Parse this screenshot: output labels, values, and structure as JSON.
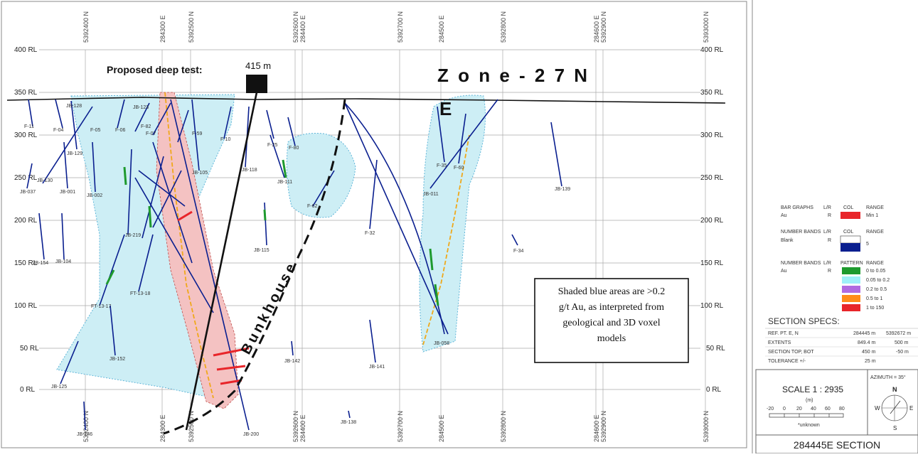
{
  "section": {
    "title": "284445E  SECTION",
    "proposed_label": "Proposed deep test:",
    "proposed_depth": "415 m",
    "zone_label_1": "Z o n e  -  2 7  N",
    "zone_label_2": "E",
    "bunkhouse_label": "Bunkhouse",
    "note": [
      "Shaded blue areas are >0.2",
      "g/t Au, as interpreted from",
      "geological and 3D voxel",
      "models"
    ]
  },
  "rl_labels": [
    "400 RL",
    "350 RL",
    "300 RL",
    "250 RL",
    "200 RL",
    "150 RL",
    "100 RL",
    "50 RL",
    "0 RL"
  ],
  "grid_labels_top": [
    "5392400 N",
    "284300 E",
    "5392500 N",
    "5392600 N",
    "284400 E",
    "5392700 N",
    "284500 E",
    "5392800 N",
    "284600 E",
    "5392900 N",
    "5393000 N"
  ],
  "grid_labels_bottom": [
    "5392400 N",
    "284300 E",
    "5392500 N",
    "5392600 N",
    "284400 E",
    "5392700 N",
    "284500 E",
    "5392800 N",
    "284600 E",
    "5392900 N",
    "5393000 N"
  ],
  "hole_labels": [
    "F-11",
    "F-04",
    "JB-128",
    "F-05",
    "F-06",
    "JB-123",
    "F-82",
    "F-07",
    "F-59",
    "F-10",
    "JB-129",
    "JB-130",
    "JB-037",
    "JB-001",
    "JB-002",
    "F-25",
    "F-80",
    "JB-118",
    "JB-111",
    "JB-105",
    "F-62",
    "F-32",
    "F-35",
    "F-60",
    "JB-011",
    "JB-139",
    "JB-154",
    "JB-104",
    "JB-219",
    "JB-115",
    "F-34",
    "FT-13-17",
    "FT-13-18",
    "JB-152",
    "JB-142",
    "JB-141",
    "JB-058",
    "JB-125",
    "JB-146",
    "JB-138",
    "JB-200"
  ],
  "legend": {
    "bar_graphs": {
      "title": "BAR GRAPHS",
      "lr": "L/R",
      "col": "COL",
      "range": "RANGE",
      "item": "Au",
      "side": "R",
      "value": "Min 1",
      "color": "#e8252a"
    },
    "number_bands_1": {
      "title": "NUMBER BANDS",
      "lr": "L/R",
      "col": "COL",
      "range": "RANGE",
      "item": "Blank",
      "side": "R",
      "value": "5",
      "color": "#0a1f8f"
    },
    "number_bands_2": {
      "title": "NUMBER BANDS",
      "lr": "L/R",
      "pattern": "PATTERN",
      "range": "RANGE",
      "item": "Au",
      "side": "R",
      "ranges": [
        {
          "label": "0 to 0.05",
          "color": "#1e9a2e"
        },
        {
          "label": "0.05 to 0.2",
          "color": "#9ef0f8"
        },
        {
          "label": "0.2 to 0.5",
          "color": "#b06be0"
        },
        {
          "label": "0.5 to 1",
          "color": "#ff8c1a"
        },
        {
          "label": "1 to 150",
          "color": "#e8252a"
        }
      ]
    }
  },
  "specs": {
    "title": "SECTION  SPECS:",
    "rows": [
      {
        "k": "REF. PT.  E, N",
        "v1": "284445 m",
        "v2": "5392672 m"
      },
      {
        "k": "EXTENTS",
        "v1": "849.4 m",
        "v2": "500 m"
      },
      {
        "k": "SECTION TOP, BOT",
        "v1": "450 m",
        "v2": "-50 m"
      },
      {
        "k": "TOLERANCE  +/-",
        "v1": "25 m",
        "v2": ""
      }
    ]
  },
  "scale": {
    "title": "SCALE  1 : 2935",
    "unit": "(m)",
    "ticks": [
      "-20",
      "0",
      "20",
      "40",
      "60",
      "80"
    ],
    "footnote": "*unknown",
    "azimuth": "AZIMUTH = 35°",
    "n": "N",
    "s": "S",
    "e": "E",
    "w": "W"
  },
  "colors": {
    "shade": "#cdeef5",
    "shade_stroke": "#5fb5d8",
    "pink": "#f4c2c2",
    "drill": "#0a1f8f",
    "orange": "#f0a81a"
  }
}
